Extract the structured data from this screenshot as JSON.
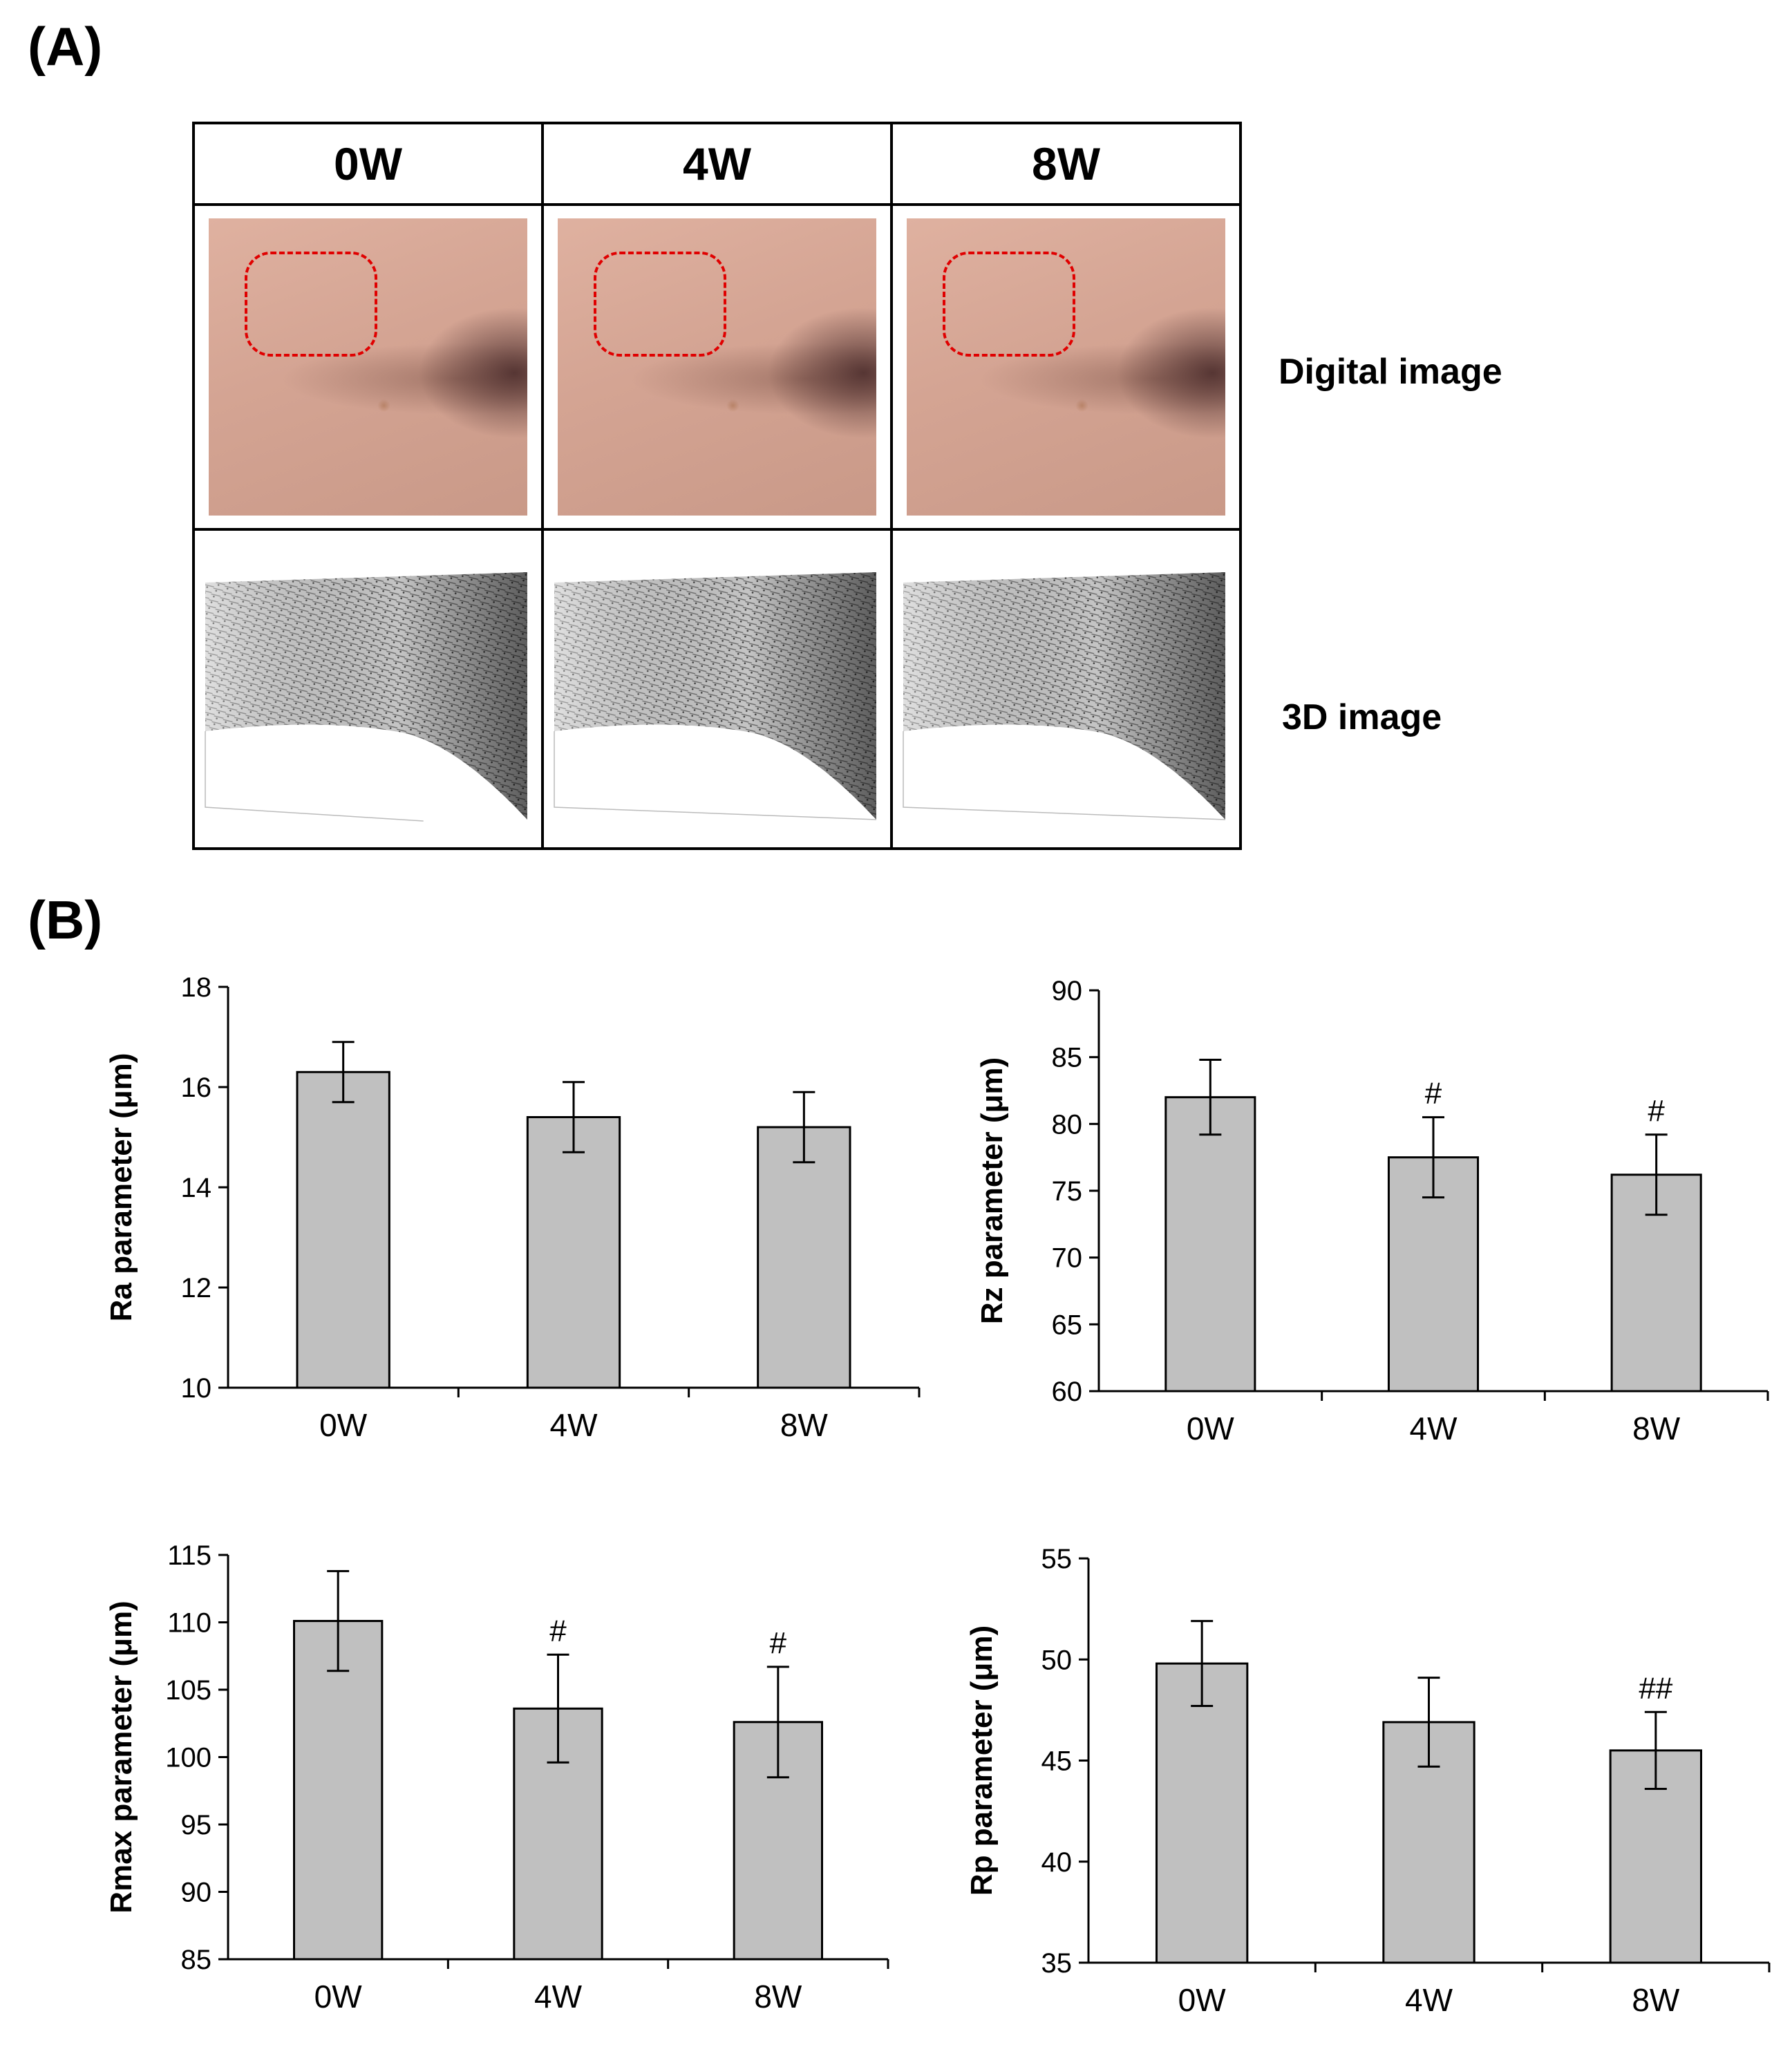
{
  "panel_a": {
    "label": "(A)",
    "columns": [
      "0W",
      "4W",
      "8W"
    ],
    "row_labels": {
      "digital": "Digital image",
      "three_d": "3D image"
    }
  },
  "panel_b": {
    "label": "(B)"
  },
  "colors": {
    "bar_fill": "#c0c0c0",
    "roi_dash": "#e00000",
    "skin_tone": "#d4a493"
  },
  "chart_data": [
    {
      "type": "bar",
      "title": "",
      "categories": [
        "0W",
        "4W",
        "8W"
      ],
      "values": [
        16.3,
        15.4,
        15.2
      ],
      "error": [
        0.6,
        0.7,
        0.7
      ],
      "annotations": [
        "",
        "",
        ""
      ],
      "xlabel": "",
      "ylabel": "Ra parameter (μm)",
      "ylim": [
        10,
        18
      ],
      "yticks": [
        10,
        12,
        14,
        16,
        18
      ],
      "grid": false
    },
    {
      "type": "bar",
      "title": "",
      "categories": [
        "0W",
        "4W",
        "8W"
      ],
      "values": [
        82.0,
        77.5,
        76.2
      ],
      "error": [
        2.8,
        3.0,
        3.0
      ],
      "annotations": [
        "",
        "#",
        "#"
      ],
      "xlabel": "",
      "ylabel": "Rz parameter (μm)",
      "ylim": [
        60,
        90
      ],
      "yticks": [
        60,
        65,
        70,
        75,
        80,
        85,
        90
      ],
      "grid": false
    },
    {
      "type": "bar",
      "title": "",
      "categories": [
        "0W",
        "4W",
        "8W"
      ],
      "values": [
        110.1,
        103.6,
        102.6
      ],
      "error": [
        3.7,
        4.0,
        4.1
      ],
      "annotations": [
        "",
        "#",
        "#"
      ],
      "xlabel": "",
      "ylabel": "Rmax parameter (μm)",
      "ylim": [
        85,
        115
      ],
      "yticks": [
        85,
        90,
        95,
        100,
        105,
        110,
        115
      ],
      "grid": false
    },
    {
      "type": "bar",
      "title": "",
      "categories": [
        "0W",
        "4W",
        "8W"
      ],
      "values": [
        49.8,
        46.9,
        45.5
      ],
      "error": [
        2.1,
        2.2,
        1.9
      ],
      "annotations": [
        "",
        "",
        "##"
      ],
      "xlabel": "",
      "ylabel": "Rp parameter (μm)",
      "ylim": [
        35,
        55
      ],
      "yticks": [
        35,
        40,
        45,
        50,
        55
      ],
      "grid": false
    }
  ]
}
